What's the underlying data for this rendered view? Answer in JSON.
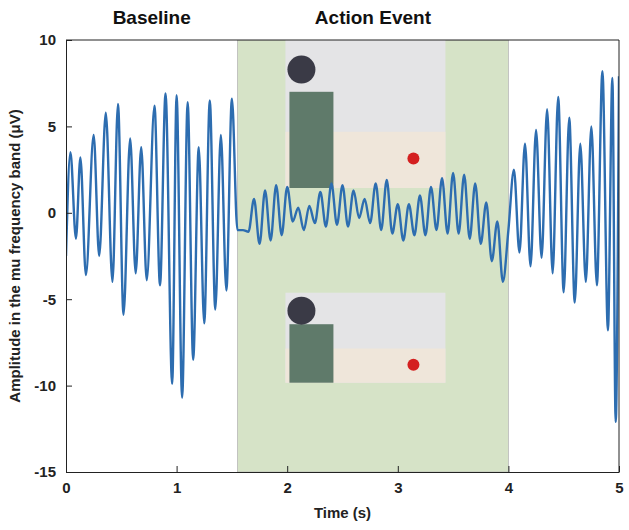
{
  "chart_data": {
    "type": "line",
    "xlabel": "Time (s)",
    "ylabel": "Amplitude in the mu frequency band (μV)",
    "annotations": [
      {
        "text": "Baseline"
      },
      {
        "text": "Action Event"
      }
    ],
    "shaded_region": {
      "x": [
        1.55,
        4.0
      ],
      "color": "#d6e3c7"
    },
    "color": "#2d6db0",
    "xlim": [
      0,
      5
    ],
    "xticks": [
      0,
      1,
      2,
      3,
      4,
      5
    ],
    "ylim": [
      -15,
      10
    ],
    "yticks": [
      -15,
      -10,
      -5,
      0,
      5,
      10
    ],
    "x": [
      0,
      0.04,
      0.09,
      0.13,
      0.18,
      0.25,
      0.3,
      0.36,
      0.42,
      0.47,
      0.52,
      0.58,
      0.63,
      0.68,
      0.73,
      0.8,
      0.85,
      0.9,
      0.96,
      1.0,
      1.05,
      1.1,
      1.15,
      1.2,
      1.25,
      1.3,
      1.35,
      1.4,
      1.45,
      1.5,
      1.55,
      1.6,
      1.65,
      1.7,
      1.75,
      1.8,
      1.85,
      1.9,
      1.95,
      2.0,
      2.05,
      2.1,
      2.15,
      2.2,
      2.25,
      2.3,
      2.35,
      2.4,
      2.45,
      2.5,
      2.55,
      2.6,
      2.65,
      2.7,
      2.75,
      2.8,
      2.85,
      2.9,
      2.95,
      3.0,
      3.05,
      3.1,
      3.15,
      3.2,
      3.25,
      3.3,
      3.35,
      3.4,
      3.45,
      3.5,
      3.55,
      3.6,
      3.65,
      3.7,
      3.75,
      3.8,
      3.85,
      3.9,
      3.95,
      4.0,
      4.05,
      4.1,
      4.15,
      4.2,
      4.25,
      4.3,
      4.35,
      4.4,
      4.45,
      4.5,
      4.55,
      4.6,
      4.65,
      4.7,
      4.75,
      4.8,
      4.85,
      4.9,
      4.94,
      4.97,
      5.0
    ],
    "values": [
      -2.5,
      3.5,
      -1.5,
      3.2,
      -3.6,
      4.5,
      -2.5,
      5.8,
      -4.0,
      6.3,
      -5.9,
      4.3,
      -3.5,
      3.8,
      -3.9,
      6.2,
      -4.2,
      6.9,
      -9.9,
      6.8,
      -10.7,
      6.4,
      -8.5,
      3.8,
      -6.4,
      6.5,
      -5.6,
      4.5,
      -4.5,
      6.6,
      -1.0,
      -1.0,
      -1.1,
      0.8,
      -1.8,
      1.3,
      -1.6,
      1.6,
      -1.3,
      1.5,
      -0.5,
      0.3,
      -1.0,
      0.4,
      -0.6,
      1.2,
      -0.8,
      1.7,
      -0.7,
      1.6,
      -0.8,
      1.3,
      -0.3,
      0.8,
      -0.6,
      1.7,
      -1.0,
      1.9,
      -1.2,
      0.5,
      -1.6,
      0.5,
      -1.3,
      1.0,
      -1.3,
      1.5,
      -1.0,
      2.0,
      -1.2,
      2.3,
      -1.2,
      2.2,
      -1.5,
      1.7,
      -1.8,
      0.6,
      -2.8,
      -0.5,
      -4.0,
      -1.0,
      2.5,
      -2.3,
      4.0,
      -3.1,
      4.8,
      -2.6,
      6.0,
      -3.5,
      6.7,
      -4.6,
      5.5,
      -5.2,
      4.0,
      -4.0,
      5.0,
      -4.2,
      8.2,
      -6.8,
      7.8,
      -12.1,
      7.9
    ]
  }
}
